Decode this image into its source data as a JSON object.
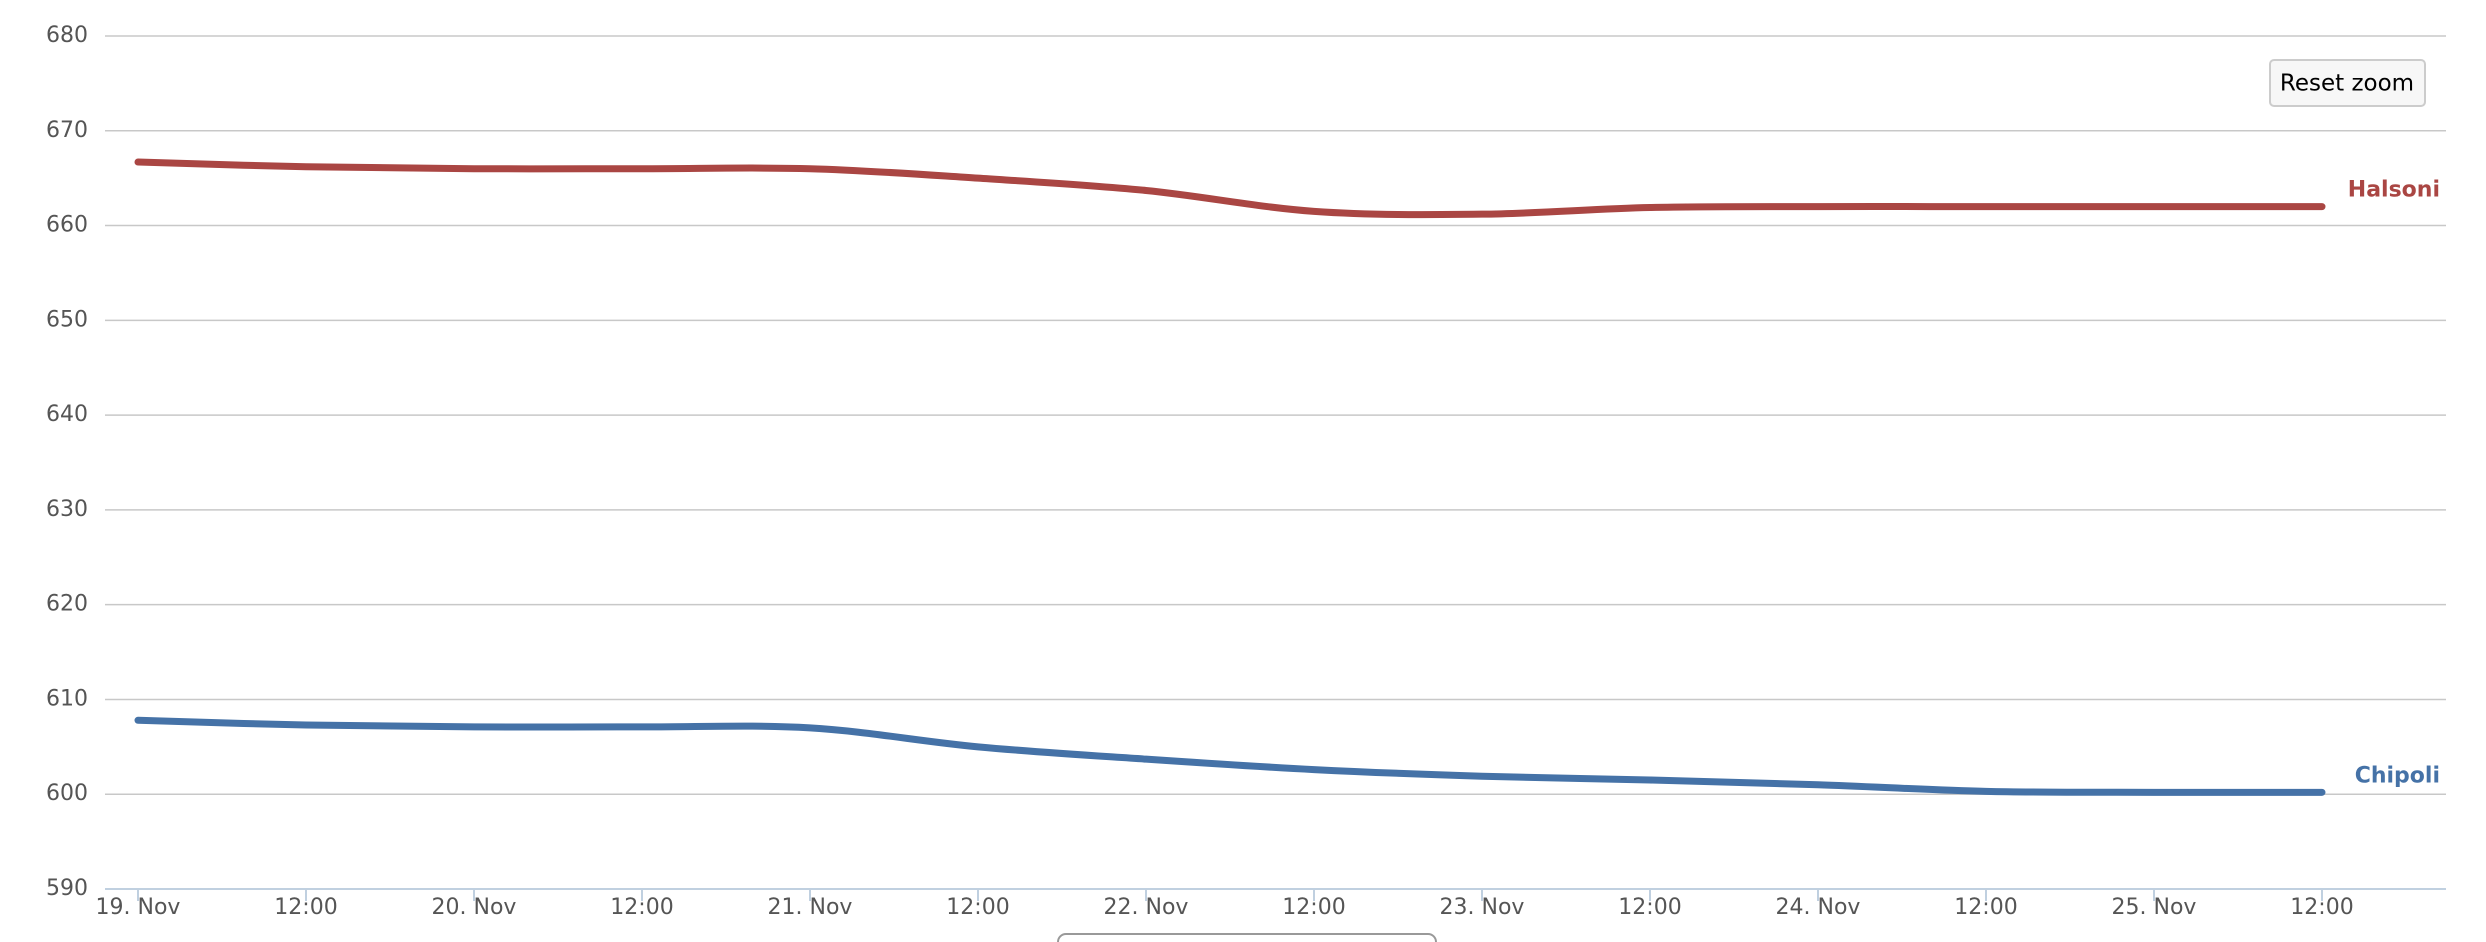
{
  "chart_data": {
    "type": "line",
    "categories": [
      "19. Nov",
      "12:00",
      "20. Nov",
      "12:00",
      "21. Nov",
      "12:00",
      "22. Nov",
      "12:00",
      "23. Nov",
      "12:00",
      "24. Nov",
      "12:00",
      "25. Nov",
      "12:00"
    ],
    "series": [
      {
        "name": "Halsoni",
        "color": "#aa4643",
        "values": [
          666.7,
          666.2,
          666,
          666,
          666,
          665,
          663.7,
          661.5,
          661.2,
          661.9,
          662,
          662,
          662,
          662
        ]
      },
      {
        "name": "Chipoli",
        "color": "#4572a7",
        "values": [
          607.8,
          607.3,
          607.1,
          607.1,
          607,
          605,
          603.7,
          602.6,
          601.9,
          601.5,
          601,
          600.3,
          600.2,
          600.2
        ]
      }
    ],
    "ylim": [
      590,
      680
    ],
    "yticks": [
      590,
      600,
      610,
      620,
      630,
      640,
      650,
      660,
      670,
      680
    ],
    "grid": true
  },
  "ui": {
    "reset_zoom": "Reset zoom"
  }
}
